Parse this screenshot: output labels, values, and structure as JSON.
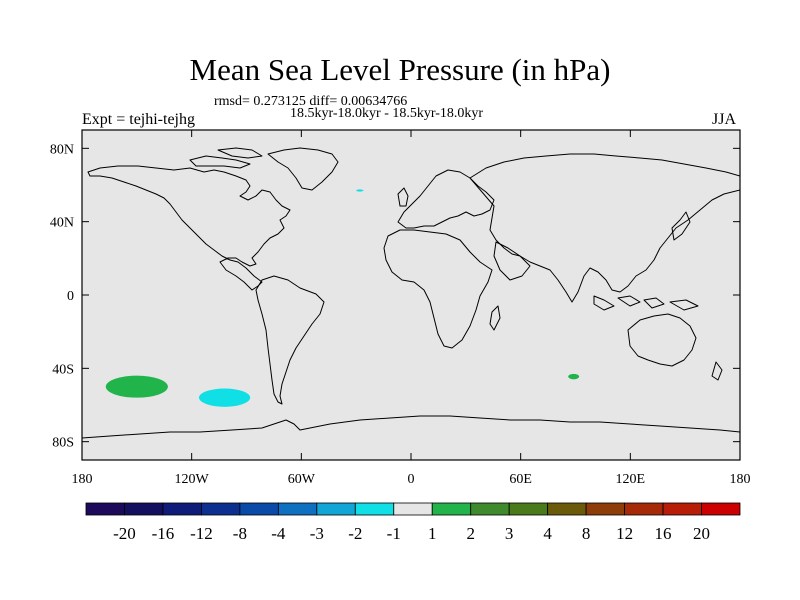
{
  "title": "Mean Sea Level Pressure (in hPa)",
  "subtitle_stats": "rmsd= 0.273125 diff= 0.00634766",
  "subtitle_period": "18.5kyr-18.0kyr - 18.5kyr-18.0kyr",
  "left_label": "Expt = tejhi-tejhg",
  "right_label": "JJA",
  "axes": {
    "lat_ticks": [
      "80N",
      "40N",
      "0",
      "40S",
      "80S"
    ],
    "lat_values": [
      80,
      40,
      0,
      -40,
      -80
    ],
    "lon_ticks": [
      "180",
      "120W",
      "60W",
      "0",
      "60E",
      "120E",
      "180"
    ],
    "lon_values": [
      -180,
      -120,
      -60,
      0,
      60,
      120,
      180
    ],
    "lat_range": [
      -90,
      90
    ],
    "lon_range": [
      -180,
      180
    ]
  },
  "colorbar": {
    "labels": [
      "-20",
      "-16",
      "-12",
      "-8",
      "-4",
      "-3",
      "-2",
      "-1",
      "1",
      "2",
      "3",
      "4",
      "8",
      "12",
      "16",
      "20"
    ],
    "colors": [
      "#1e0a5a",
      "#13105f",
      "#101c7a",
      "#0d2f90",
      "#0a4aa8",
      "#0f6fc0",
      "#12a6d6",
      "#10e0e6",
      "#e6e6e6",
      "#21b44a",
      "#3f8a2c",
      "#4a7a19",
      "#6b5a0a",
      "#8e3d09",
      "#a72a08",
      "#b81d08",
      "#cc0000"
    ]
  },
  "colors": {
    "ocean_background": "#e6e6e6",
    "negative_anomaly": "#10e0e6",
    "positive_anomaly": "#21b44a"
  },
  "anomaly_regions": [
    {
      "name": "south-pacific-positive",
      "value_class": "1 to 2",
      "color": "#21b44a",
      "lon": -150,
      "lat": -50,
      "dlon": 17,
      "dlat": 6
    },
    {
      "name": "southeast-pacific-negative",
      "value_class": "-2 to -1",
      "color": "#10e0e6",
      "lon": -102,
      "lat": -56,
      "dlon": 14,
      "dlat": 5
    },
    {
      "name": "south-indian-positive",
      "value_class": "1 to 2",
      "color": "#21b44a",
      "lon": 89,
      "lat": -44.5,
      "dlon": 3,
      "dlat": 1.5
    },
    {
      "name": "north-atlantic-negative",
      "value_class": "-2 to -1",
      "color": "#10e0e6",
      "lon": -28,
      "lat": 57,
      "dlon": 2,
      "dlat": 0.6
    }
  ]
}
